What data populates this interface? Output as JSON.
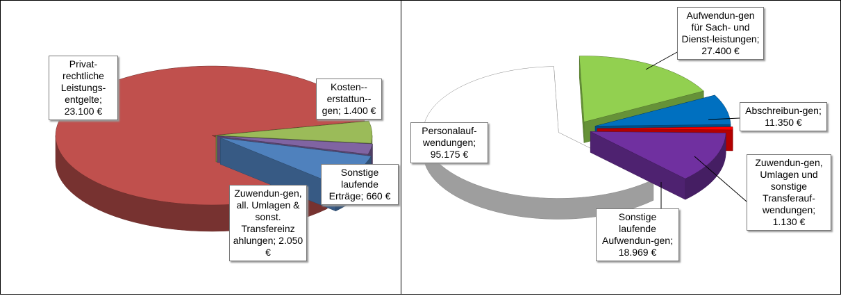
{
  "chart_data": [
    {
      "type": "pie3d",
      "categories": [
        "Privat-rechtliche Leistungs-entgelte",
        "Kosten--erstattun--gen",
        "Sonstige laufende Erträge",
        "Zuwendun-gen, all. Umlagen & sonst. Transfereinz ahlungen"
      ],
      "values": [
        23100,
        1400,
        660,
        2050
      ],
      "value_labels": [
        "23.100 €",
        "1.400 €",
        "660 €",
        "2.050 €"
      ],
      "colors": [
        "#c0504d",
        "#9bbb59",
        "#8064a2",
        "#4f81bd"
      ],
      "label_separator": ";"
    },
    {
      "type": "pie3d",
      "categories": [
        "Personalauf-wendungen",
        "Aufwendun-gen für Sach- und Dienst-leistungen",
        "Abschreibun-gen",
        "Zuwendun-gen, Umlagen und sonstige Transferauf-wendungen",
        "Sonstige laufende Aufwendun-gen"
      ],
      "values": [
        95175,
        27400,
        11350,
        1130,
        18969
      ],
      "value_labels": [
        "95.175 €",
        "27.400 €",
        "11.350 €",
        "1.130 €",
        "18.969 €"
      ],
      "colors": [
        "#ffffff",
        "#92d050",
        "#0070c0",
        "#ff0000",
        "#7030a0"
      ],
      "label_separator": ";"
    }
  ]
}
